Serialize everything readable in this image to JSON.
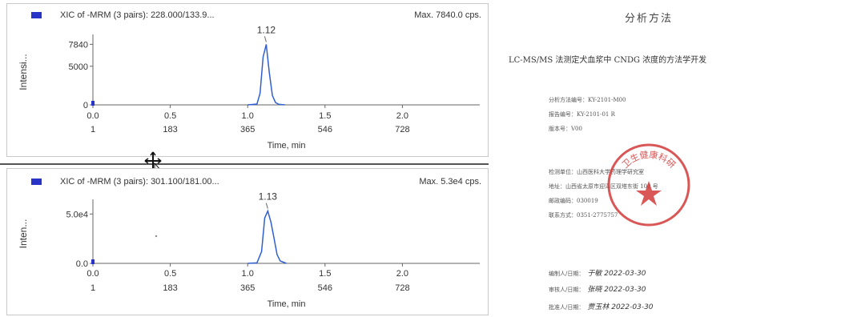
{
  "chromatograms": [
    {
      "header_label": "XIC of -MRM (3 pairs): 228.000/133.9...",
      "max_label": "Max. 7840.0 cps.",
      "y_axis_label": "Intensi...",
      "x_axis_label": "Time, min",
      "y_tick_labels": [
        "7840",
        "5000",
        "0"
      ],
      "x_tick_labels": [
        "0.0",
        "0.5",
        "1.0",
        "1.5",
        "2.0"
      ],
      "scan_tick_labels": [
        "1",
        "183",
        "365",
        "546",
        "728"
      ],
      "peak_label": "1.12"
    },
    {
      "header_label": "XIC of -MRM (3 pairs): 301.100/181.00...",
      "max_label": "Max. 5.3e4 cps.",
      "y_axis_label": "Inten...",
      "x_axis_label": "Time, min",
      "y_tick_labels": [
        "5.0e4",
        "0.0"
      ],
      "x_tick_labels": [
        "0.0",
        "0.5",
        "1.0",
        "1.5",
        "2.0"
      ],
      "scan_tick_labels": [
        "1",
        "183",
        "365",
        "546",
        "728"
      ],
      "peak_label": "1.13"
    }
  ],
  "chart_data": [
    {
      "type": "line",
      "x": [
        1.0,
        1.06,
        1.08,
        1.1,
        1.12,
        1.14,
        1.16,
        1.18,
        1.2,
        1.24
      ],
      "values": [
        0,
        100,
        1500,
        6200,
        7840,
        4200,
        1200,
        300,
        80,
        0
      ],
      "xlim": [
        0,
        2.5
      ],
      "ylim": [
        0,
        8500
      ],
      "color": "#2f5fd0"
    },
    {
      "type": "line",
      "x": [
        1.0,
        1.06,
        1.09,
        1.11,
        1.13,
        1.15,
        1.17,
        1.19,
        1.21,
        1.25
      ],
      "values": [
        0,
        500,
        12000,
        46000,
        53000,
        42000,
        26000,
        9000,
        2500,
        0
      ],
      "xlim": [
        0,
        2.5
      ],
      "ylim": [
        0,
        60000
      ],
      "color": "#2f5fd0"
    }
  ],
  "document": {
    "title": "分析方法",
    "subtitle": "LC-MS/MS 法测定犬血浆中 CNDG 浓度的方法学开发",
    "lines_block1": [
      "分析方法编号：KY-2101-M00",
      "报告编号：KY-2101-01 R",
      "版本号：V00"
    ],
    "lines_block2": [
      "检测单位：山西医科大学药理学研究室",
      "地址：山西省太原市迎泽区双塔东街 100 号",
      "邮政编码：030019",
      "联系方式：0351-2775757"
    ],
    "signatures": [
      {
        "role": "编制人/日期：",
        "hand": "于敏  2022-03-30"
      },
      {
        "role": "审核人/日期：",
        "hand": "张晓  2022-03-30"
      },
      {
        "role": "批准人/日期：",
        "hand": "贾玉林  2022-03-30"
      }
    ],
    "seal_text": "卫生健康科研"
  },
  "colors": {
    "trace": "#2f5fd0",
    "swatch": "#2a33c8",
    "seal": "#d23a3a"
  }
}
